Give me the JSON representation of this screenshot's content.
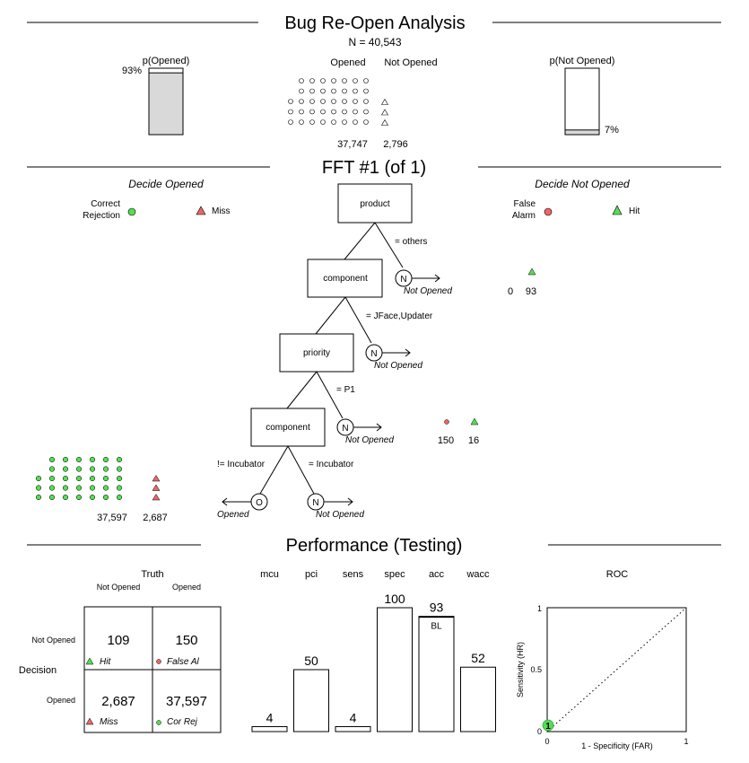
{
  "header": {
    "title": "Bug Re-Open Analysis",
    "n_label": "N = 40,543",
    "p_opened_label": "p(Opened)",
    "p_opened_value": "93%",
    "p_opened_fraction": 0.93,
    "p_not_opened_label": "p(Not Opened)",
    "p_not_opened_value": "7%",
    "p_not_opened_fraction": 0.07,
    "col_opened": "Opened",
    "col_not_opened": "Not Opened",
    "count_opened": "37,747",
    "count_not_opened": "2,796"
  },
  "fft": {
    "title": "FFT #1 (of 1)",
    "left_heading": "Decide Opened",
    "right_heading": "Decide Not Opened",
    "legend": {
      "correct_rejection_1": "Correct",
      "correct_rejection_2": "Rejection",
      "miss": "Miss",
      "false_alarm_1": "False",
      "false_alarm_2": "Alarm",
      "hit": "Hit"
    },
    "nodes": [
      {
        "label": "product",
        "cue": "= others",
        "exit_symbol": "N",
        "exit_label": "Not Opened"
      },
      {
        "label": "component",
        "cue": "= JFace,Updater",
        "exit_symbol": "N",
        "exit_label": "Not Opened"
      },
      {
        "label": "priority",
        "cue": "= P1",
        "exit_symbol": "N",
        "exit_label": "Not Opened"
      },
      {
        "label": "component",
        "cue_left": "!= Incubator",
        "cue_right": "= Incubator",
        "exit_left_symbol": "O",
        "exit_left_label": "Opened",
        "exit_right_symbol": "N",
        "exit_right_label": "Not Opened"
      }
    ],
    "counts": {
      "right_top_fa": "0",
      "right_top_hit": "93",
      "right_bottom_fa": "150",
      "right_bottom_hit": "16",
      "left_bottom_cr": "37,597",
      "left_bottom_miss": "2,687"
    },
    "colors": {
      "green": "#55dd55",
      "red": "#ee6666"
    }
  },
  "performance": {
    "title": "Performance (Testing)",
    "truth_label": "Truth",
    "truth_not_opened": "Not Opened",
    "truth_opened": "Opened",
    "decision_label": "Decision",
    "dec_not_opened": "Not Opened",
    "dec_opened": "Opened",
    "cells": {
      "hit": "109",
      "hit_label": "Hit",
      "fa": "150",
      "fa_label": "False Al",
      "miss": "2,687",
      "miss_label": "Miss",
      "cr": "37,597",
      "cr_label": "Cor Rej"
    },
    "bl_label": "BL",
    "roc": {
      "title": "ROC",
      "ylabel": "Sensitivity (HR)",
      "xlabel": "1 - Specificity (FAR)",
      "tick_0": "0",
      "tick_05": "0.5",
      "tick_1": "1",
      "point_label": "1"
    }
  },
  "chart_data": {
    "type": "bar",
    "categories": [
      "mcu",
      "pci",
      "sens",
      "spec",
      "acc",
      "wacc"
    ],
    "values": [
      4,
      50,
      4,
      100,
      93,
      52
    ],
    "value_labels": [
      "4",
      "50",
      "4",
      "100",
      "93",
      "52"
    ],
    "ylim": [
      0,
      100
    ]
  }
}
